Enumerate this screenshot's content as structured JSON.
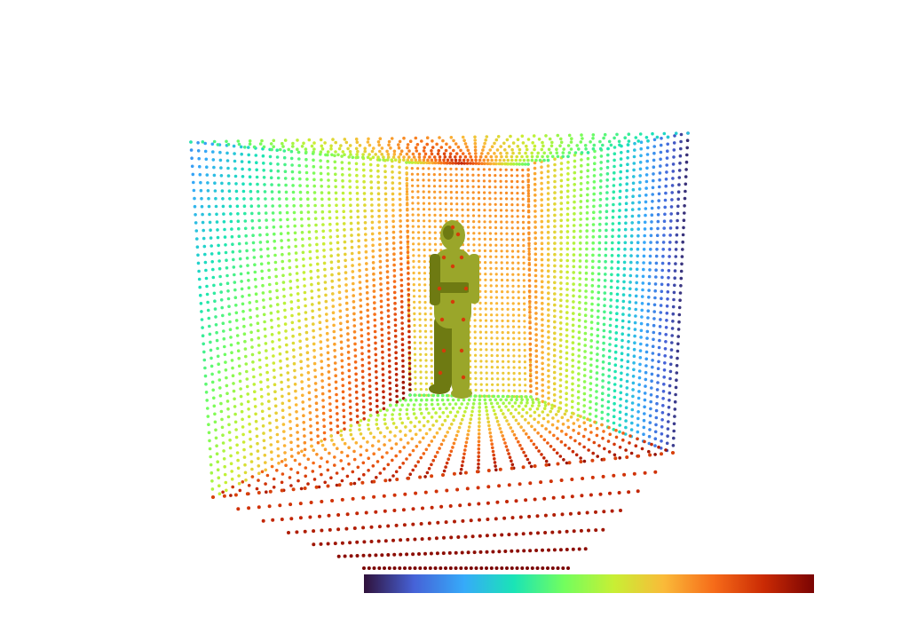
{
  "viewport": {
    "background": "#ffffff",
    "point_cloud": {
      "shape": "open-box",
      "colormap": "turbo",
      "visible_faces": [
        "top",
        "back",
        "left",
        "right",
        "bottom"
      ],
      "point_style": "sphere"
    },
    "figure": {
      "type": "standing-human-mesh",
      "color": "#9aa62a",
      "shade_color": "#6e7a12"
    }
  },
  "colorbar": {
    "colormap": "turbo",
    "stops": [
      "#30123b",
      "#4662d7",
      "#36aaf9",
      "#1ae4b6",
      "#72fe5e",
      "#c8ef34",
      "#faba39",
      "#f66b19",
      "#ca2a04",
      "#7a0403"
    ]
  }
}
